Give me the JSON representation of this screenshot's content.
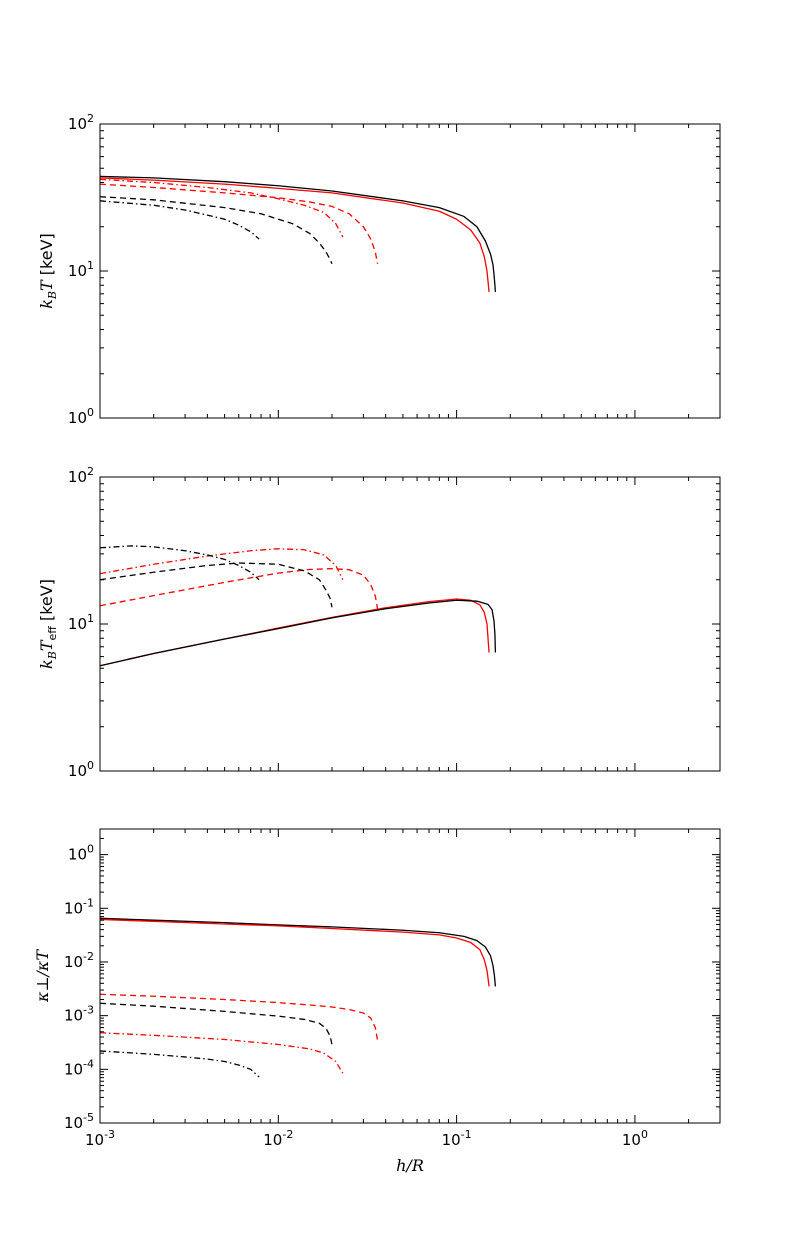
{
  "colors": {
    "black": "#000000",
    "red": "#ff0000"
  },
  "chart_data": [
    {
      "type": "line",
      "id": "temperature",
      "ylabel": "k_B T [keV]",
      "ylabel_math": "k",
      "ylabel_sub": "B",
      "ylabel_math2": "T",
      "ylabel_unit": " [keV]",
      "xscale": "log",
      "yscale": "log",
      "xlim": [
        0.001,
        3.0
      ],
      "ylim": [
        1,
        100
      ],
      "yticks": [
        {
          "v": 1,
          "base": "10",
          "exp": "0"
        },
        {
          "v": 10,
          "base": "10",
          "exp": "1"
        },
        {
          "v": 100,
          "base": "10",
          "exp": "2"
        }
      ],
      "show_xticklabels": false,
      "series": [
        {
          "color": "black",
          "dash": "solid",
          "x": [
            0.001,
            0.002,
            0.005,
            0.01,
            0.02,
            0.05,
            0.08,
            0.11,
            0.13,
            0.145,
            0.155,
            0.16,
            0.162,
            0.164,
            0.165
          ],
          "y": [
            44,
            43,
            40.5,
            38,
            35,
            30,
            27,
            23.5,
            20,
            16,
            13,
            11,
            9.5,
            8,
            7.2
          ]
        },
        {
          "color": "red",
          "dash": "solid",
          "x": [
            0.001,
            0.002,
            0.005,
            0.01,
            0.02,
            0.05,
            0.08,
            0.1,
            0.12,
            0.135,
            0.143,
            0.148,
            0.15,
            0.152
          ],
          "y": [
            43,
            41.5,
            39,
            36.5,
            34,
            29,
            25.5,
            22.5,
            19,
            15.5,
            12.5,
            10,
            8.5,
            7.2
          ]
        },
        {
          "color": "red",
          "dash": "dash",
          "x": [
            0.001,
            0.002,
            0.005,
            0.01,
            0.015,
            0.02,
            0.025,
            0.03,
            0.033,
            0.035,
            0.036
          ],
          "y": [
            39,
            37,
            34,
            31.5,
            29.5,
            27.5,
            24.5,
            20,
            16.5,
            13.5,
            11.2
          ]
        },
        {
          "color": "black",
          "dash": "dash",
          "x": [
            0.001,
            0.002,
            0.005,
            0.008,
            0.012,
            0.015,
            0.017,
            0.0185,
            0.0195,
            0.02
          ],
          "y": [
            32,
            30.5,
            27,
            24.5,
            21,
            18,
            15.5,
            13.5,
            12,
            11.2
          ]
        },
        {
          "color": "red",
          "dash": "dashdot",
          "x": [
            0.001,
            0.002,
            0.004,
            0.007,
            0.01,
            0.014,
            0.018,
            0.021,
            0.023
          ],
          "y": [
            42,
            40,
            37,
            34,
            31,
            28,
            25,
            21,
            17
          ]
        },
        {
          "color": "black",
          "dash": "dashdot",
          "x": [
            0.001,
            0.002,
            0.003,
            0.004,
            0.005,
            0.006,
            0.007,
            0.0078
          ],
          "y": [
            30,
            28,
            26,
            24,
            22.5,
            20.5,
            18.5,
            16.5
          ]
        }
      ]
    },
    {
      "type": "line",
      "id": "effective-temperature",
      "ylabel": "k_B T_eff [keV]",
      "ylabel_math": "k",
      "ylabel_sub": "B",
      "ylabel_math2": "T",
      "ylabel_sub2": "eff",
      "ylabel_unit": " [keV]",
      "xscale": "log",
      "yscale": "log",
      "xlim": [
        0.001,
        3.0
      ],
      "ylim": [
        1,
        100
      ],
      "yticks": [
        {
          "v": 1,
          "base": "10",
          "exp": "0"
        },
        {
          "v": 10,
          "base": "10",
          "exp": "1"
        },
        {
          "v": 100,
          "base": "10",
          "exp": "2"
        }
      ],
      "show_xticklabels": false,
      "series": [
        {
          "color": "red",
          "dash": "solid",
          "x": [
            0.001,
            0.002,
            0.005,
            0.01,
            0.02,
            0.04,
            0.07,
            0.1,
            0.12,
            0.135,
            0.143,
            0.148,
            0.15,
            0.152
          ],
          "y": [
            5.2,
            6.3,
            7.9,
            9.4,
            11.1,
            12.9,
            14.2,
            14.8,
            14.5,
            13.5,
            12,
            10,
            8,
            6.4
          ]
        },
        {
          "color": "black",
          "dash": "solid",
          "x": [
            0.001,
            0.002,
            0.005,
            0.01,
            0.02,
            0.04,
            0.07,
            0.1,
            0.13,
            0.15,
            0.158,
            0.162,
            0.164,
            0.165
          ],
          "y": [
            5.2,
            6.3,
            7.9,
            9.3,
            11,
            12.7,
            13.9,
            14.5,
            14.3,
            13.6,
            12.5,
            10.5,
            8.5,
            6.4
          ]
        },
        {
          "color": "red",
          "dash": "dash",
          "x": [
            0.001,
            0.002,
            0.005,
            0.01,
            0.015,
            0.02,
            0.025,
            0.03,
            0.033,
            0.035,
            0.036
          ],
          "y": [
            13.3,
            15.6,
            19.2,
            22.2,
            23.5,
            23.8,
            23.4,
            21.5,
            18.5,
            15.5,
            12.7
          ]
        },
        {
          "color": "black",
          "dash": "dash",
          "x": [
            0.001,
            0.002,
            0.004,
            0.006,
            0.01,
            0.014,
            0.017,
            0.0185,
            0.0195,
            0.02
          ],
          "y": [
            20,
            22.5,
            25,
            26,
            25.5,
            23,
            20,
            17,
            15,
            13
          ]
        },
        {
          "color": "red",
          "dash": "dashdot",
          "x": [
            0.001,
            0.002,
            0.004,
            0.007,
            0.01,
            0.014,
            0.018,
            0.021,
            0.023
          ],
          "y": [
            22,
            25.5,
            29,
            31.5,
            32.5,
            32,
            29.5,
            25,
            20
          ]
        },
        {
          "color": "black",
          "dash": "dashdot",
          "x": [
            0.001,
            0.0015,
            0.002,
            0.003,
            0.004,
            0.005,
            0.006,
            0.007,
            0.0078
          ],
          "y": [
            33,
            34,
            33.5,
            31.5,
            29.5,
            27.5,
            25,
            22.5,
            20
          ]
        }
      ]
    },
    {
      "type": "line",
      "id": "conductivity-ratio",
      "xlabel": "h/R",
      "ylabel": "κ⊥/κT",
      "xscale": "log",
      "yscale": "log",
      "xlim": [
        0.001,
        3.0
      ],
      "ylim": [
        1e-05,
        3.0
      ],
      "xticks": [
        {
          "v": 0.001,
          "base": "10",
          "exp": "-3"
        },
        {
          "v": 0.01,
          "base": "10",
          "exp": "-2"
        },
        {
          "v": 0.1,
          "base": "10",
          "exp": "-1"
        },
        {
          "v": 1,
          "base": "10",
          "exp": "0"
        }
      ],
      "yticks": [
        {
          "v": 1e-05,
          "base": "10",
          "exp": "-5"
        },
        {
          "v": 0.0001,
          "base": "10",
          "exp": "-4"
        },
        {
          "v": 0.001,
          "base": "10",
          "exp": "-3"
        },
        {
          "v": 0.01,
          "base": "10",
          "exp": "-2"
        },
        {
          "v": 0.1,
          "base": "10",
          "exp": "-1"
        },
        {
          "v": 1,
          "base": "10",
          "exp": "0"
        }
      ],
      "show_xticklabels": true,
      "series": [
        {
          "color": "black",
          "dash": "solid",
          "x": [
            0.001,
            0.002,
            0.005,
            0.01,
            0.02,
            0.05,
            0.08,
            0.11,
            0.13,
            0.145,
            0.155,
            0.16,
            0.163,
            0.165
          ],
          "y": [
            0.065,
            0.06,
            0.054,
            0.049,
            0.045,
            0.039,
            0.035,
            0.03,
            0.025,
            0.019,
            0.013,
            0.0085,
            0.0055,
            0.0035
          ]
        },
        {
          "color": "red",
          "dash": "solid",
          "x": [
            0.001,
            0.002,
            0.005,
            0.01,
            0.02,
            0.05,
            0.08,
            0.1,
            0.12,
            0.135,
            0.143,
            0.148,
            0.15,
            0.152
          ],
          "y": [
            0.062,
            0.057,
            0.051,
            0.047,
            0.042,
            0.036,
            0.032,
            0.028,
            0.023,
            0.017,
            0.011,
            0.007,
            0.005,
            0.0035
          ]
        },
        {
          "color": "red",
          "dash": "dash",
          "x": [
            0.001,
            0.002,
            0.005,
            0.01,
            0.015,
            0.02,
            0.025,
            0.03,
            0.033,
            0.035,
            0.036
          ],
          "y": [
            0.0025,
            0.0023,
            0.002,
            0.00175,
            0.00158,
            0.00145,
            0.0013,
            0.00112,
            0.0009,
            0.0006,
            0.00035
          ]
        },
        {
          "color": "black",
          "dash": "dash",
          "x": [
            0.001,
            0.002,
            0.005,
            0.01,
            0.014,
            0.017,
            0.0185,
            0.0195,
            0.02
          ],
          "y": [
            0.0017,
            0.0015,
            0.0012,
            0.00098,
            0.00085,
            0.00072,
            0.00058,
            0.00042,
            0.00029
          ]
        },
        {
          "color": "red",
          "dash": "dashdot",
          "x": [
            0.001,
            0.002,
            0.005,
            0.01,
            0.015,
            0.018,
            0.021,
            0.023
          ],
          "y": [
            0.00048,
            0.00043,
            0.00036,
            0.00029,
            0.00024,
            0.0002,
            0.00014,
            8.5e-05
          ]
        },
        {
          "color": "black",
          "dash": "dashdot",
          "x": [
            0.001,
            0.002,
            0.003,
            0.004,
            0.005,
            0.006,
            0.007,
            0.0078
          ],
          "y": [
            0.00022,
            0.00019,
            0.00017,
            0.000155,
            0.00014,
            0.00012,
            0.0001,
            7.2e-05
          ]
        }
      ]
    }
  ]
}
